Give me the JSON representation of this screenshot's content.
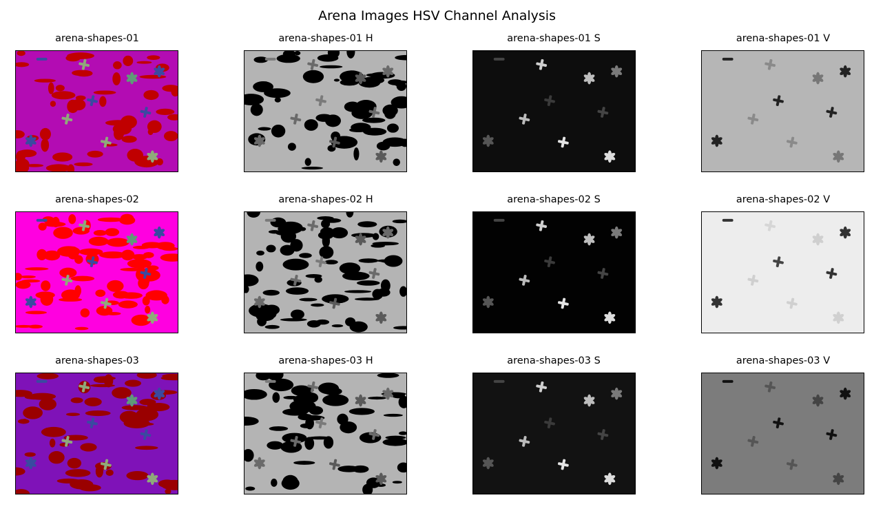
{
  "figure": {
    "title": "Arena Images HSV Channel Analysis"
  },
  "rows": [
    {
      "image": "arena-shapes-01",
      "panels": [
        {
          "title": "arena-shapes-01",
          "channel": "rgb",
          "bg": "#b30cb3",
          "blob": "#c00000"
        },
        {
          "title": "arena-shapes-01 H",
          "channel": "h",
          "bg": "#b4b4b4",
          "blob": "#000000"
        },
        {
          "title": "arena-shapes-01 S",
          "channel": "s",
          "bg": "#0d0d0d",
          "blob": "#0d0d0d"
        },
        {
          "title": "arena-shapes-01 V",
          "channel": "v",
          "bg": "#bebebe",
          "blob": "#bebebe"
        }
      ]
    },
    {
      "image": "arena-shapes-02",
      "panels": [
        {
          "title": "arena-shapes-02",
          "channel": "rgb",
          "bg": "#ff00e0",
          "blob": "#ff0000"
        },
        {
          "title": "arena-shapes-02 H",
          "channel": "h",
          "bg": "#b4b4b4",
          "blob": "#000000"
        },
        {
          "title": "arena-shapes-02 S",
          "channel": "s",
          "bg": "#020202",
          "blob": "#020202"
        },
        {
          "title": "arena-shapes-02 V",
          "channel": "v",
          "bg": "#f7f7f7",
          "blob": "#f7f7f7"
        }
      ]
    },
    {
      "image": "arena-shapes-03",
      "panels": [
        {
          "title": "arena-shapes-03",
          "channel": "rgb",
          "bg": "#7f12b8",
          "blob": "#9a0000"
        },
        {
          "title": "arena-shapes-03 H",
          "channel": "h",
          "bg": "#b4b4b4",
          "blob": "#000000"
        },
        {
          "title": "arena-shapes-03 S",
          "channel": "s",
          "bg": "#121212",
          "blob": "#121212"
        },
        {
          "title": "arena-shapes-03 V",
          "channel": "v",
          "bg": "#828282",
          "blob": "#828282"
        }
      ]
    }
  ]
}
